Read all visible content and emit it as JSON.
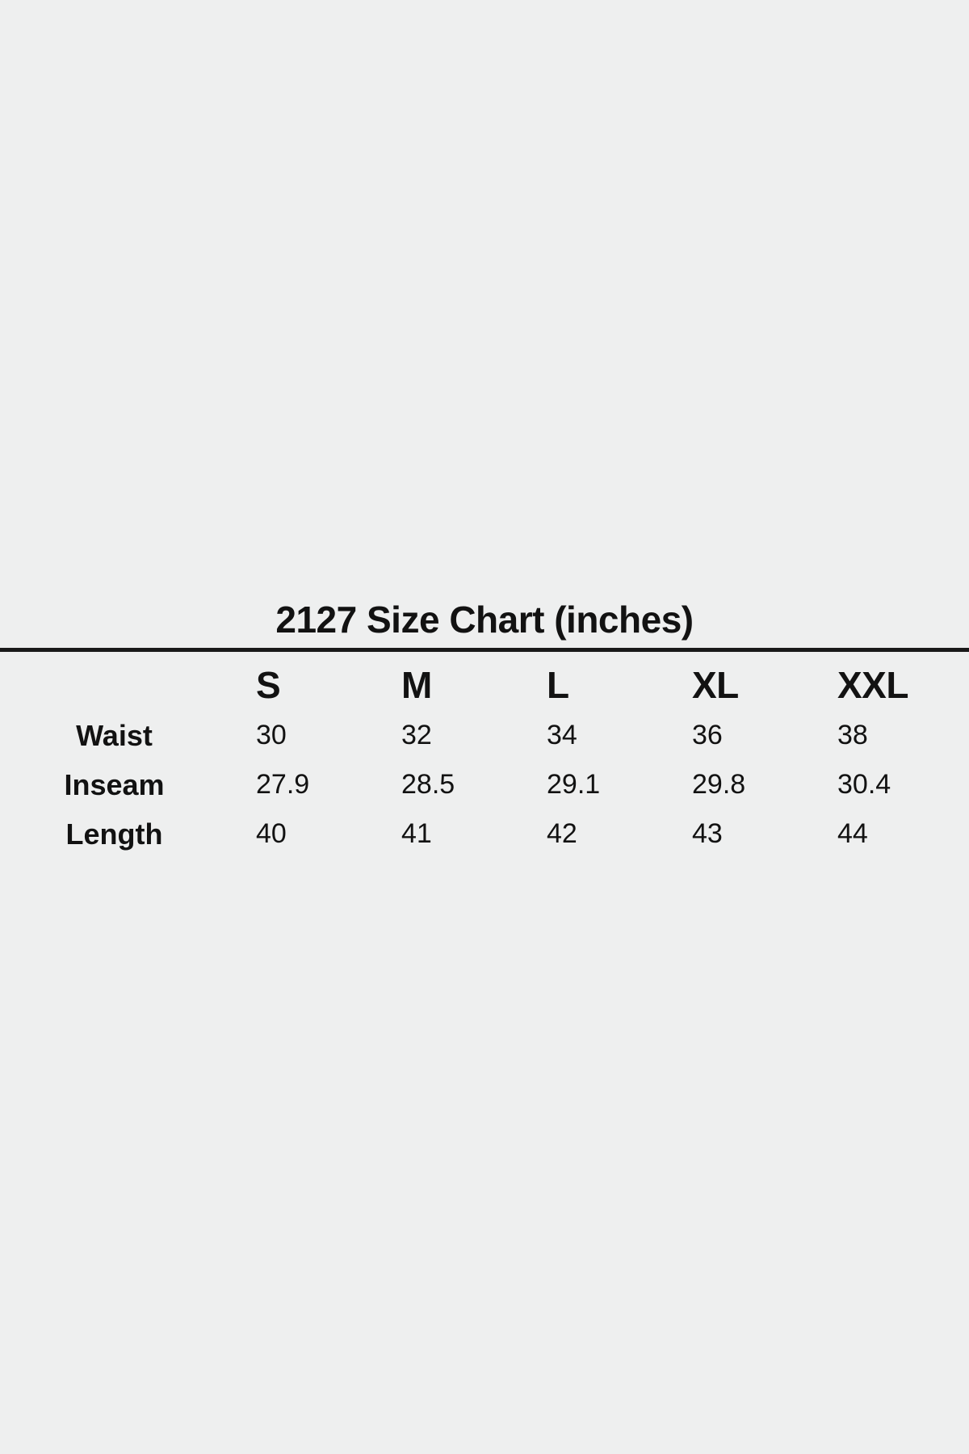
{
  "page": {
    "background_color": "#eeefef",
    "text_color": "#121212",
    "rule_color": "#191919"
  },
  "size_chart": {
    "title": "2127 Size Chart (inches)",
    "columns": [
      "S",
      "M",
      "L",
      "XL",
      "XXL"
    ],
    "rows": [
      {
        "label": "Waist",
        "values": [
          "30",
          "32",
          "34",
          "36",
          "38"
        ]
      },
      {
        "label": "Inseam",
        "values": [
          "27.9",
          "28.5",
          "29.1",
          "29.8",
          "30.4"
        ]
      },
      {
        "label": "Length",
        "values": [
          "40",
          "41",
          "42",
          "43",
          "44"
        ]
      }
    ]
  },
  "chart_data": {
    "type": "table",
    "title": "2127 Size Chart (inches)",
    "unit": "inches",
    "columns": [
      "",
      "S",
      "M",
      "L",
      "XL",
      "XXL"
    ],
    "rows": [
      [
        "Waist",
        30,
        32,
        34,
        36,
        38
      ],
      [
        "Inseam",
        27.9,
        28.5,
        29.1,
        29.8,
        30.4
      ],
      [
        "Length",
        40,
        41,
        42,
        43,
        44
      ]
    ]
  }
}
